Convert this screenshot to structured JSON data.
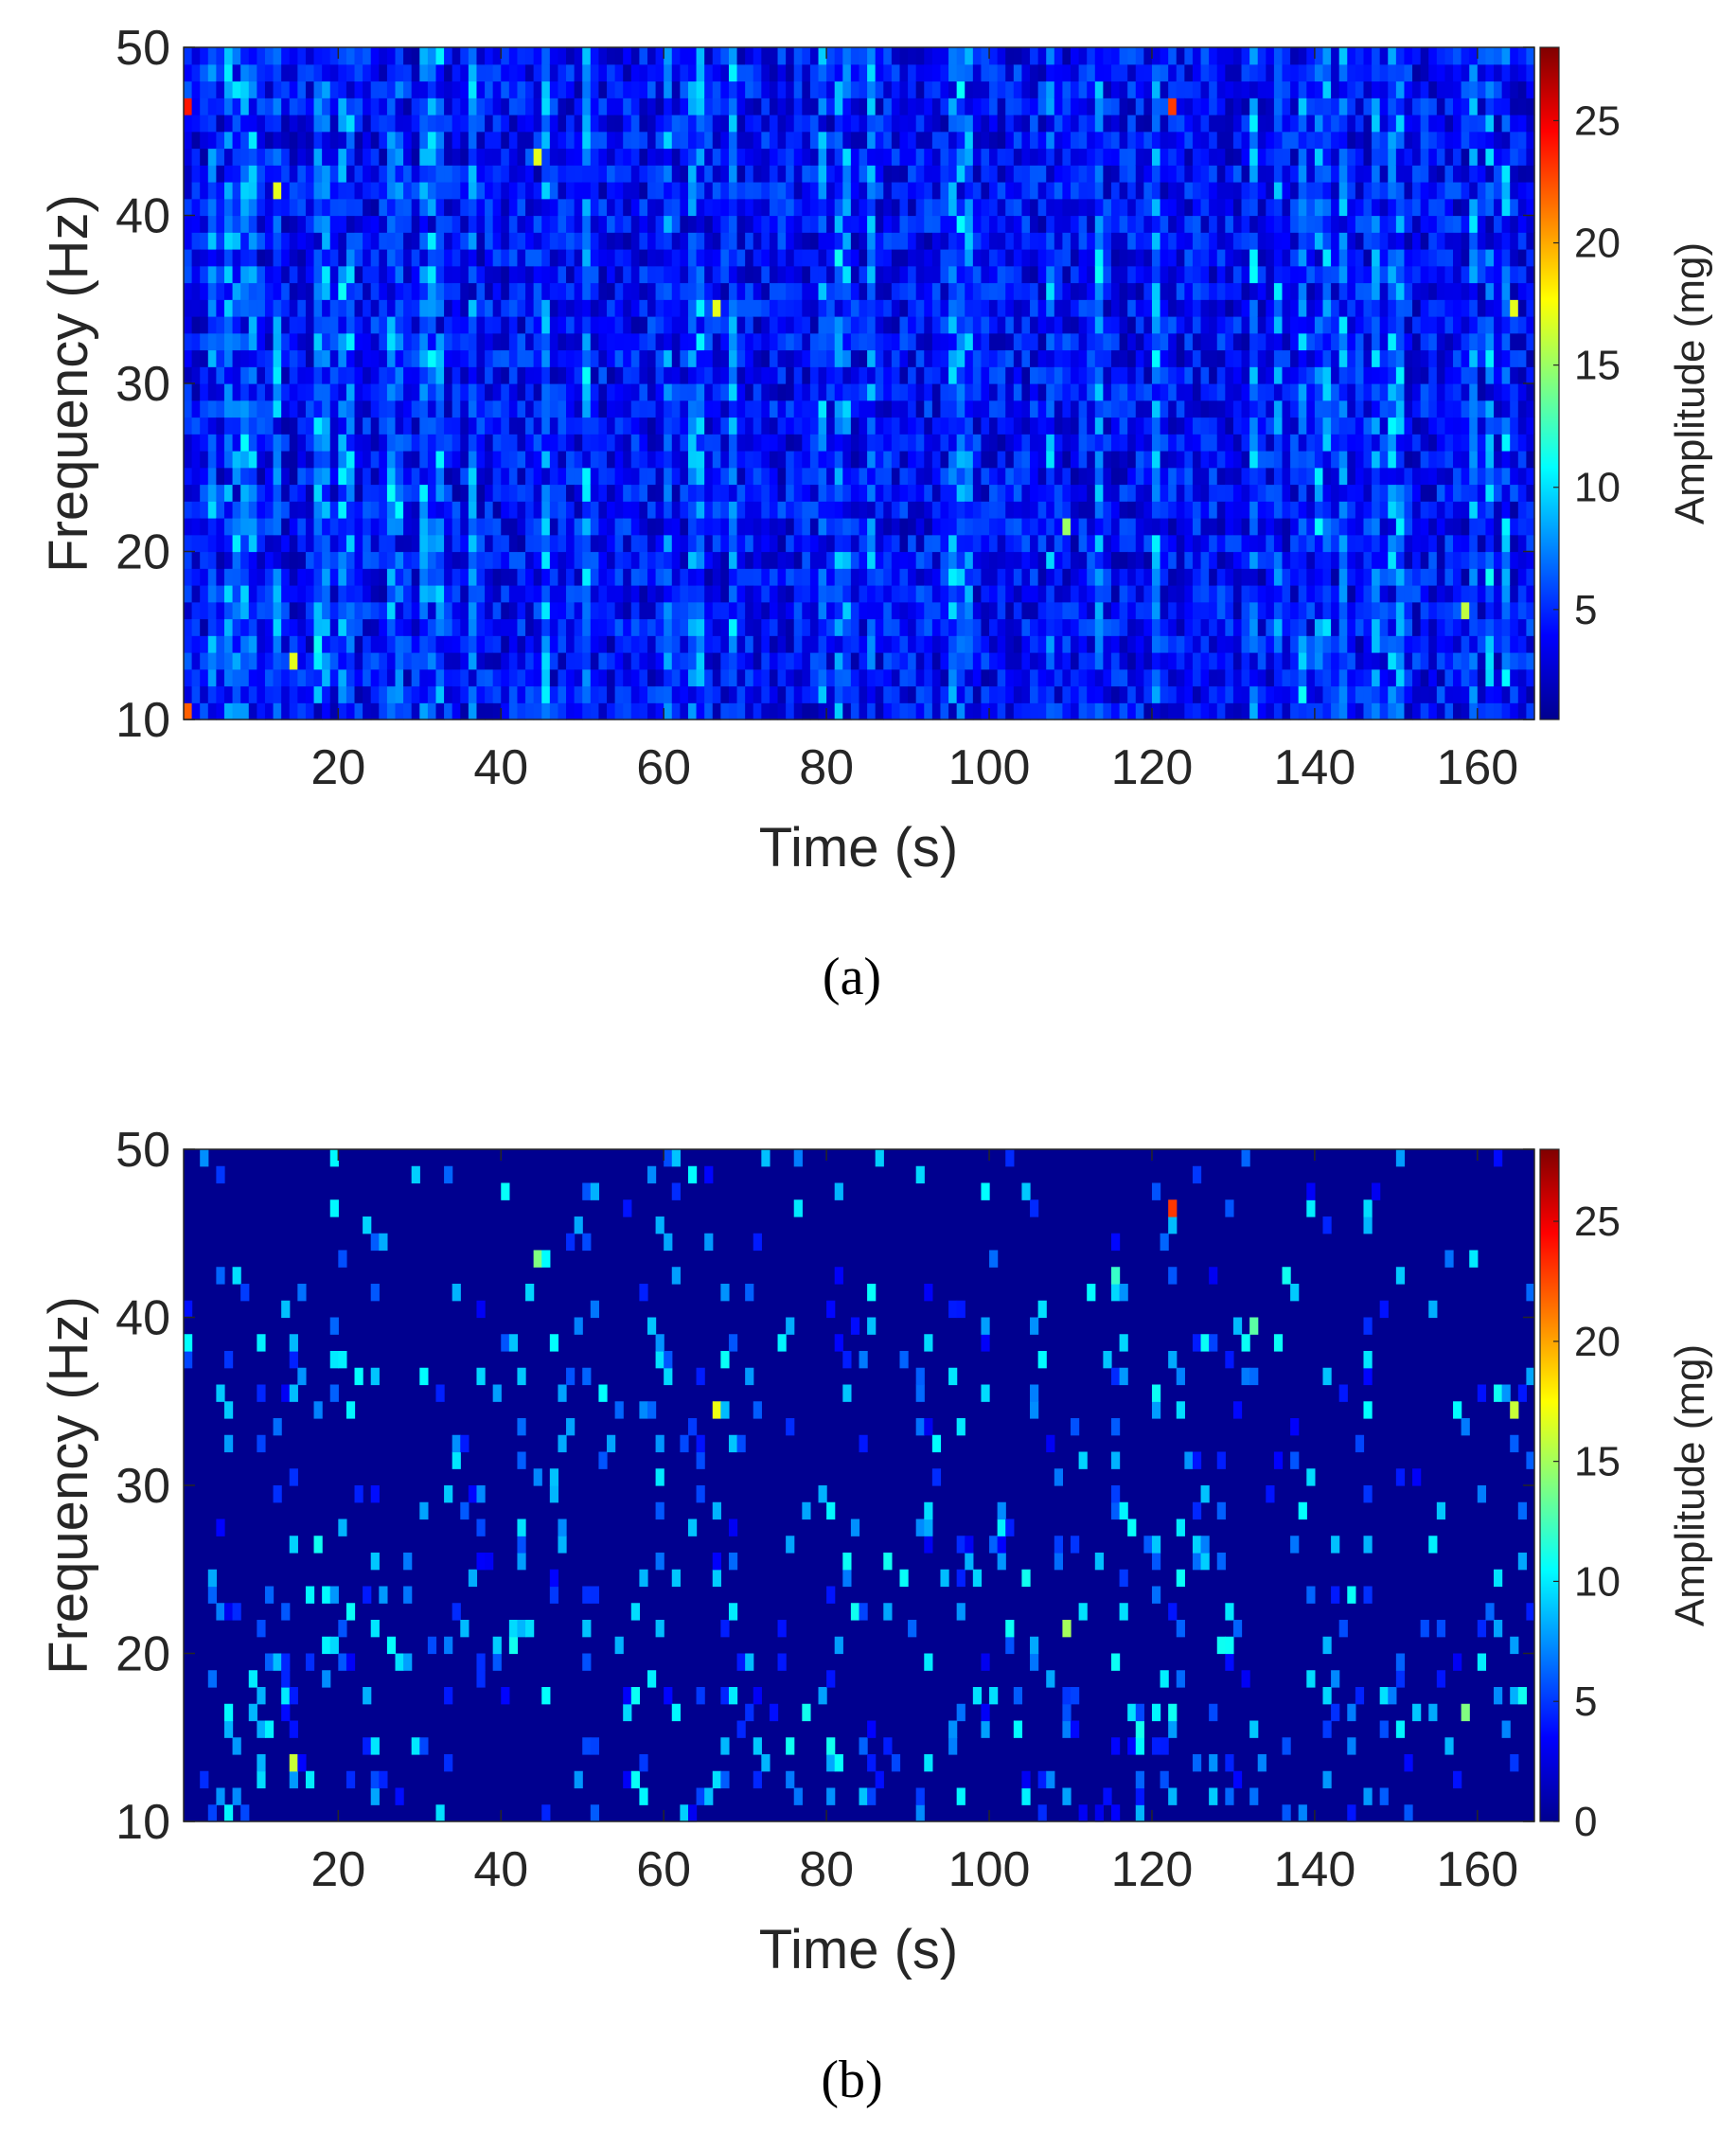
{
  "figure": {
    "captions": [
      "(a)",
      "(b)"
    ]
  },
  "chart_data": [
    {
      "type": "heatmap",
      "panel": "a",
      "title": "",
      "xlabel": "Time (s)",
      "ylabel": "Frequency (Hz)",
      "colorbar_label": "Amplitude (mg)",
      "colormap": "jet",
      "xlim": [
        1,
        167
      ],
      "ylim": [
        10,
        50
      ],
      "clim": [
        0.5,
        28
      ],
      "xticks": [
        20,
        40,
        60,
        80,
        100,
        120,
        140,
        160
      ],
      "yticks": [
        10,
        20,
        30,
        40,
        50
      ],
      "colorbar_ticks": [
        5,
        10,
        15,
        20,
        25
      ],
      "time_bins": 166,
      "frequency_bins": 40,
      "background_level": "dense noise, mostly 2–8 mg",
      "highlights": [
        {
          "time": 1,
          "frequency": 46,
          "amplitude": 24
        },
        {
          "time": 1,
          "frequency": 10.5,
          "amplitude": 22
        },
        {
          "time": 123,
          "frequency": 46,
          "amplitude": 23
        },
        {
          "time": 44,
          "frequency": 43,
          "amplitude": 17
        },
        {
          "time": 12,
          "frequency": 41,
          "amplitude": 17
        },
        {
          "time": 66,
          "frequency": 34,
          "amplitude": 17
        },
        {
          "time": 165,
          "frequency": 34,
          "amplitude": 17
        },
        {
          "time": 110,
          "frequency": 21,
          "amplitude": 15
        },
        {
          "time": 14,
          "frequency": 13,
          "amplitude": 17
        },
        {
          "time": 159,
          "frequency": 16,
          "amplitude": 16
        }
      ]
    },
    {
      "type": "heatmap",
      "panel": "b",
      "title": "",
      "xlabel": "Time (s)",
      "ylabel": "Frequency (Hz)",
      "colorbar_label": "Amplitude (mg)",
      "colormap": "jet",
      "xlim": [
        1,
        167
      ],
      "ylim": [
        10,
        50
      ],
      "clim": [
        0,
        28
      ],
      "xticks": [
        20,
        40,
        60,
        80,
        100,
        120,
        140,
        160
      ],
      "yticks": [
        10,
        20,
        30,
        40,
        50
      ],
      "colorbar_ticks": [
        0,
        5,
        10,
        15,
        20,
        25
      ],
      "time_bins": 166,
      "frequency_bins": 40,
      "background_level": "0 mg (thresholded), sparse nonzero cells 3–12 mg",
      "highlights": [
        {
          "time": 123,
          "frequency": 46,
          "amplitude": 23
        },
        {
          "time": 44,
          "frequency": 43,
          "amplitude": 14
        },
        {
          "time": 66,
          "frequency": 34,
          "amplitude": 17
        },
        {
          "time": 165,
          "frequency": 34,
          "amplitude": 16
        },
        {
          "time": 116,
          "frequency": 42,
          "amplitude": 12
        },
        {
          "time": 133,
          "frequency": 39,
          "amplitude": 13
        },
        {
          "time": 110,
          "frequency": 21,
          "amplitude": 15
        },
        {
          "time": 14,
          "frequency": 13,
          "amplitude": 16
        },
        {
          "time": 159,
          "frequency": 16,
          "amplitude": 14
        }
      ]
    }
  ]
}
